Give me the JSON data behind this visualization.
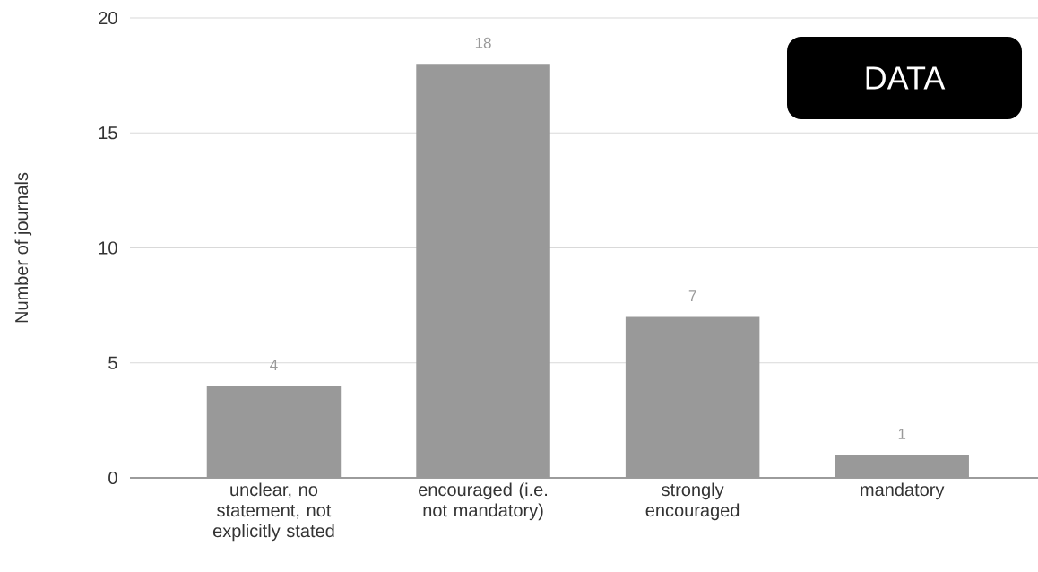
{
  "chart_data": {
    "type": "bar",
    "ylabel": "Number of journals",
    "categories": [
      "unclear, no statement, not explicitly stated",
      "encouraged (i.e. not mandatory)",
      "strongly encouraged",
      "mandatory"
    ],
    "values": [
      4,
      18,
      7,
      1
    ],
    "color": "#999999",
    "ylim": [
      0,
      20
    ],
    "yticks": [
      0,
      5,
      10,
      15,
      20
    ],
    "grid": "y",
    "data_labels": true,
    "annotations": [
      "DATA"
    ]
  }
}
